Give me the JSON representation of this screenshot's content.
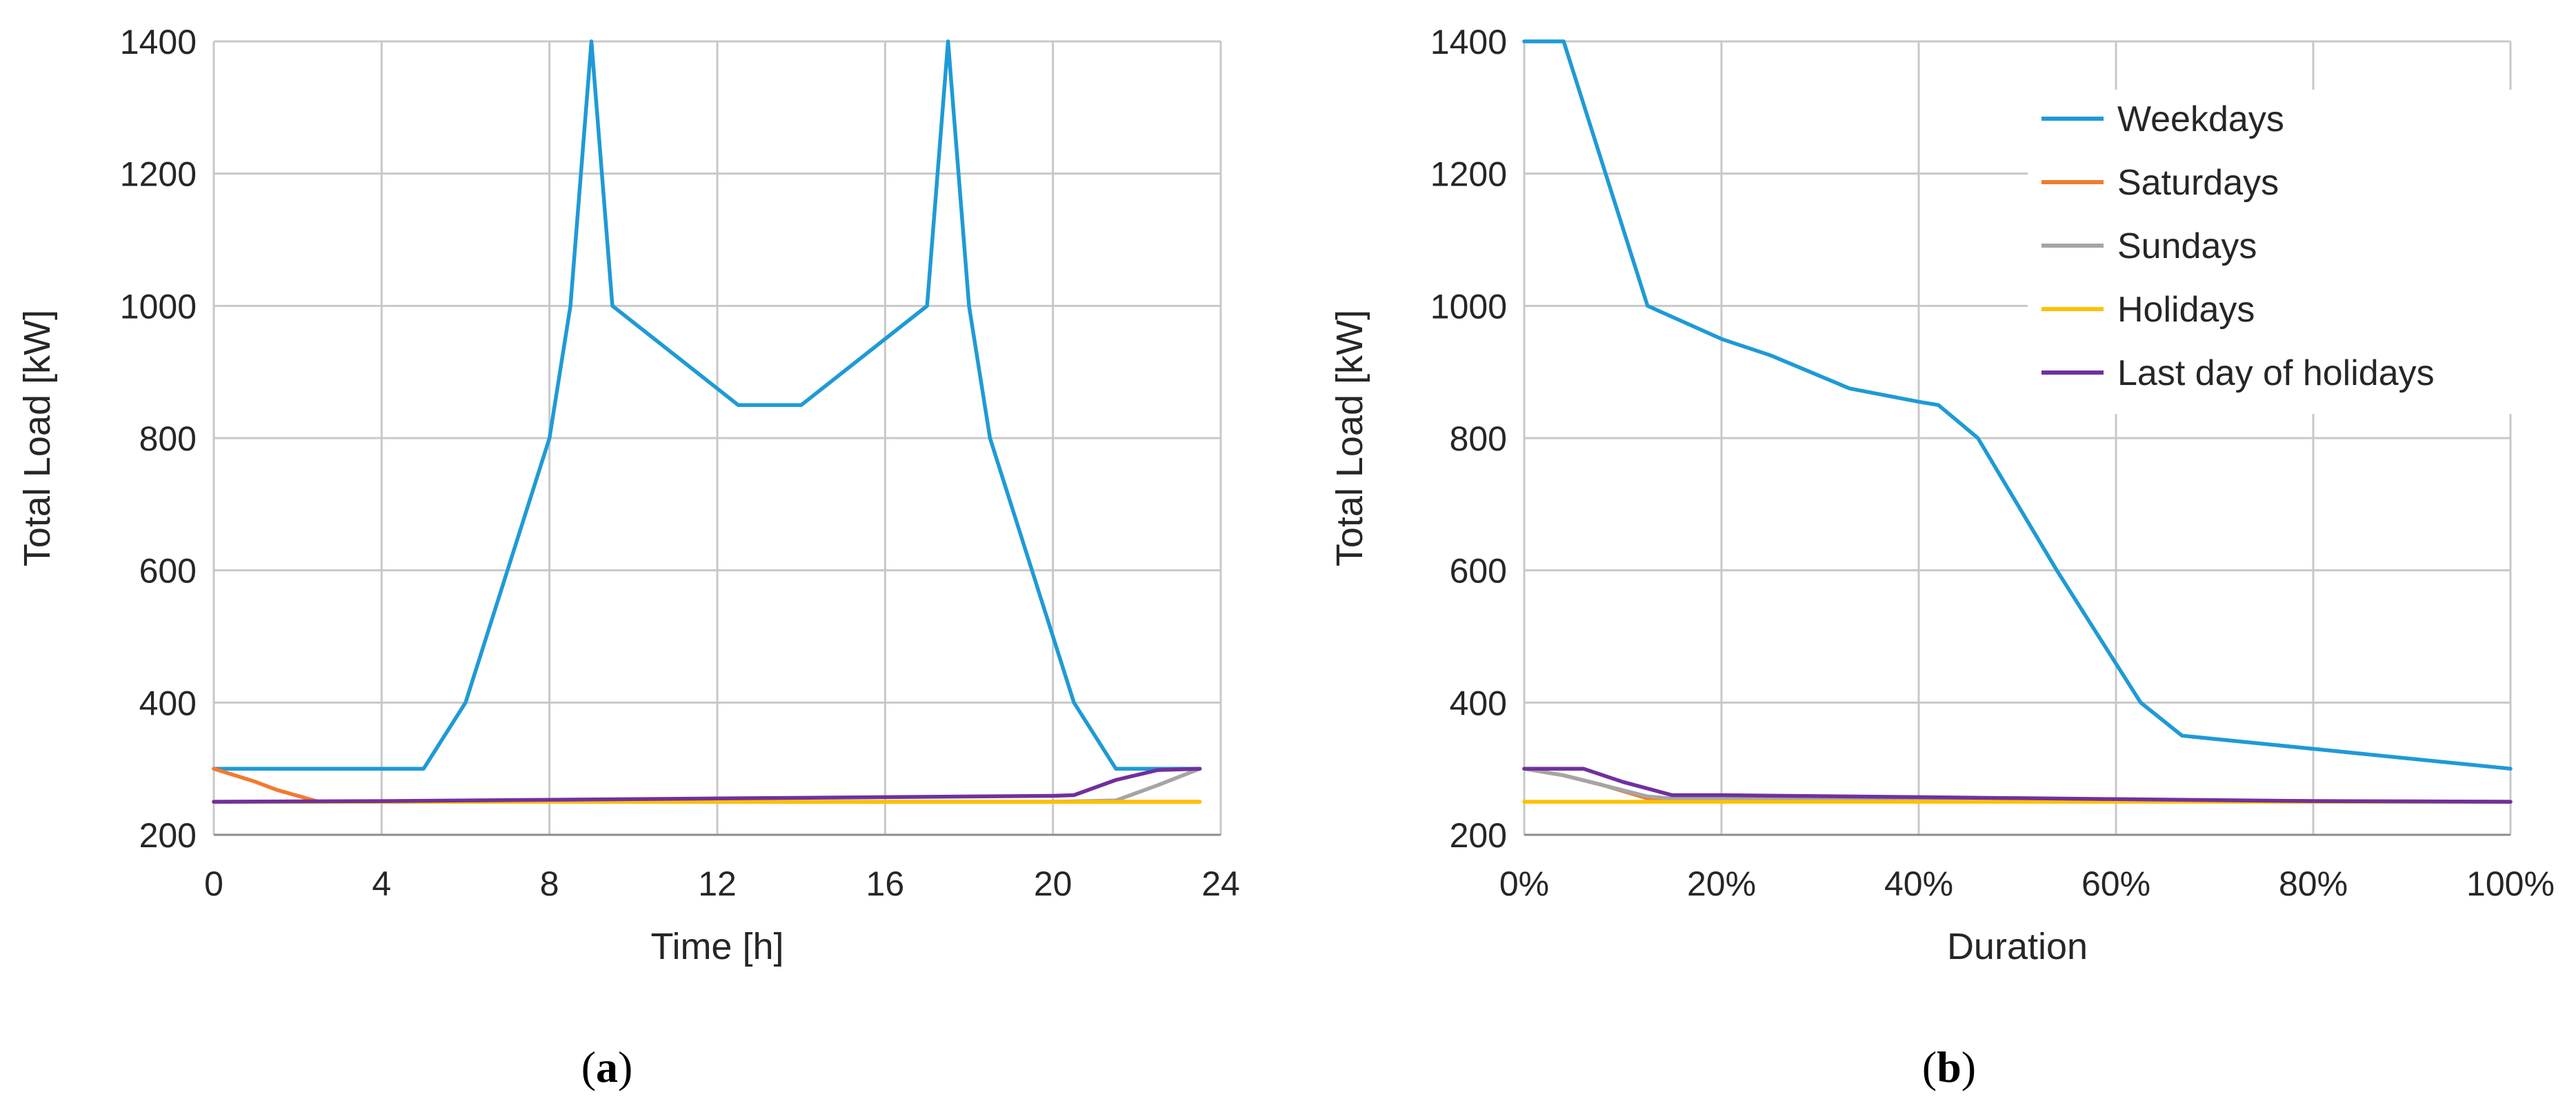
{
  "chart_data": [
    {
      "type": "line",
      "panel": "a",
      "caption": "a",
      "xlabel": "Time [h]",
      "ylabel": "Total Load [kW]",
      "xlim": [
        0,
        24
      ],
      "ylim": [
        200,
        1400
      ],
      "xticks": [
        0,
        4,
        8,
        12,
        16,
        20,
        24
      ],
      "yticks": [
        200,
        400,
        600,
        800,
        1000,
        1200,
        1400
      ],
      "xtick_labels": [
        "0",
        "4",
        "8",
        "12",
        "16",
        "20",
        "24"
      ],
      "ytick_labels": [
        "200",
        "400",
        "600",
        "800",
        "1000",
        "1200",
        "1400"
      ],
      "grid": true,
      "series": [
        {
          "name": "Weekdays",
          "color": "#1f9ad6",
          "x": [
            0,
            1,
            2,
            3,
            4,
            5,
            6,
            7,
            8,
            8.5,
            9,
            9.5,
            10.5,
            11.5,
            12.5,
            13,
            14,
            15,
            16,
            17,
            17.5,
            18,
            18.5,
            19.5,
            20.5,
            21.5,
            22.5,
            23.5
          ],
          "y": [
            300,
            300,
            300,
            300,
            300,
            300,
            400,
            600,
            800,
            1000,
            1400,
            1000,
            950,
            900,
            850,
            850,
            850,
            900,
            950,
            1000,
            1400,
            1000,
            800,
            600,
            400,
            300,
            300,
            300
          ]
        },
        {
          "name": "Saturdays",
          "color": "#f07b30",
          "x": [
            0,
            1,
            1.5,
            2.5,
            4,
            8,
            12,
            16,
            20,
            21,
            22,
            23.5
          ],
          "y": [
            300,
            280,
            268,
            250,
            250,
            250,
            250,
            250,
            250,
            250,
            250,
            250
          ]
        },
        {
          "name": "Sundays",
          "color": "#a5a5a5",
          "x": [
            0,
            4,
            8,
            12,
            16,
            20,
            21.5,
            22.5,
            23.5
          ],
          "y": [
            250,
            250,
            250,
            250,
            250,
            250,
            252,
            275,
            300
          ]
        },
        {
          "name": "Holidays",
          "color": "#ffc000",
          "x": [
            0,
            4,
            8,
            12,
            16,
            20,
            23.5
          ],
          "y": [
            250,
            250,
            250,
            250,
            250,
            250,
            250
          ]
        },
        {
          "name": "Last day of holidays",
          "color": "#7030a0",
          "x": [
            0,
            4,
            8,
            12,
            16,
            20,
            20.5,
            21.5,
            22.5,
            23.5
          ],
          "y": [
            250,
            251,
            253,
            255,
            257,
            259,
            260,
            283,
            298,
            300
          ]
        }
      ]
    },
    {
      "type": "line",
      "panel": "b",
      "caption": "b",
      "xlabel": "Duration",
      "ylabel": "Total Load [kW]",
      "xlim": [
        0,
        100
      ],
      "ylim": [
        200,
        1400
      ],
      "xticks": [
        0,
        20,
        40,
        60,
        80,
        100
      ],
      "yticks": [
        200,
        400,
        600,
        800,
        1000,
        1200,
        1400
      ],
      "xtick_labels": [
        "0%",
        "20%",
        "40%",
        "60%",
        "80%",
        "100%"
      ],
      "ytick_labels": [
        "200",
        "400",
        "600",
        "800",
        "1000",
        "1200",
        "1400"
      ],
      "grid": true,
      "legend_position": "top-right",
      "series": [
        {
          "name": "Weekdays",
          "color": "#1f9ad6",
          "x": [
            0,
            4,
            12.5,
            20,
            25,
            33,
            40,
            42,
            46,
            54,
            62.5,
            66.7,
            80,
            100
          ],
          "y": [
            1400,
            1400,
            1000,
            950,
            925,
            875,
            855,
            850,
            800,
            600,
            400,
            350,
            330,
            300
          ]
        },
        {
          "name": "Saturdays",
          "color": "#f07b30",
          "x": [
            0,
            4,
            8,
            12.5,
            15,
            100
          ],
          "y": [
            300,
            290,
            275,
            255,
            252,
            250
          ]
        },
        {
          "name": "Sundays",
          "color": "#a5a5a5",
          "x": [
            0,
            4,
            8,
            12.5,
            15,
            100
          ],
          "y": [
            300,
            290,
            275,
            258,
            255,
            250
          ]
        },
        {
          "name": "Holidays",
          "color": "#ffc000",
          "x": [
            0,
            100
          ],
          "y": [
            250,
            250
          ]
        },
        {
          "name": "Last day of holidays",
          "color": "#7030a0",
          "x": [
            0,
            6,
            10,
            15,
            20,
            40,
            60,
            80,
            100
          ],
          "y": [
            300,
            300,
            280,
            260,
            260,
            257,
            254,
            251,
            250
          ]
        }
      ]
    }
  ]
}
